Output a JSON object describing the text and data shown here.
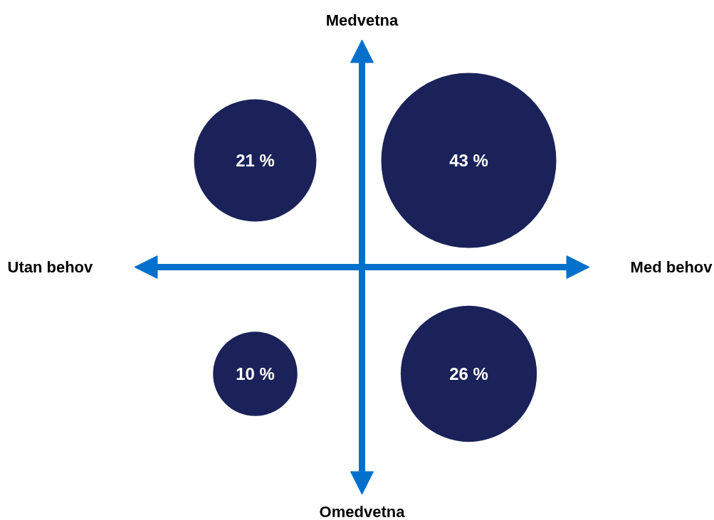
{
  "chart_data": {
    "type": "other",
    "values": [
      21,
      43,
      10,
      26
    ],
    "value_labels": [
      "21 %",
      "43 %",
      "10 %",
      "26 %"
    ],
    "color": "#1a2259",
    "annotations": [
      "Medvetna",
      "Omedvetna",
      "Utan behov",
      "Med behov"
    ]
  }
}
